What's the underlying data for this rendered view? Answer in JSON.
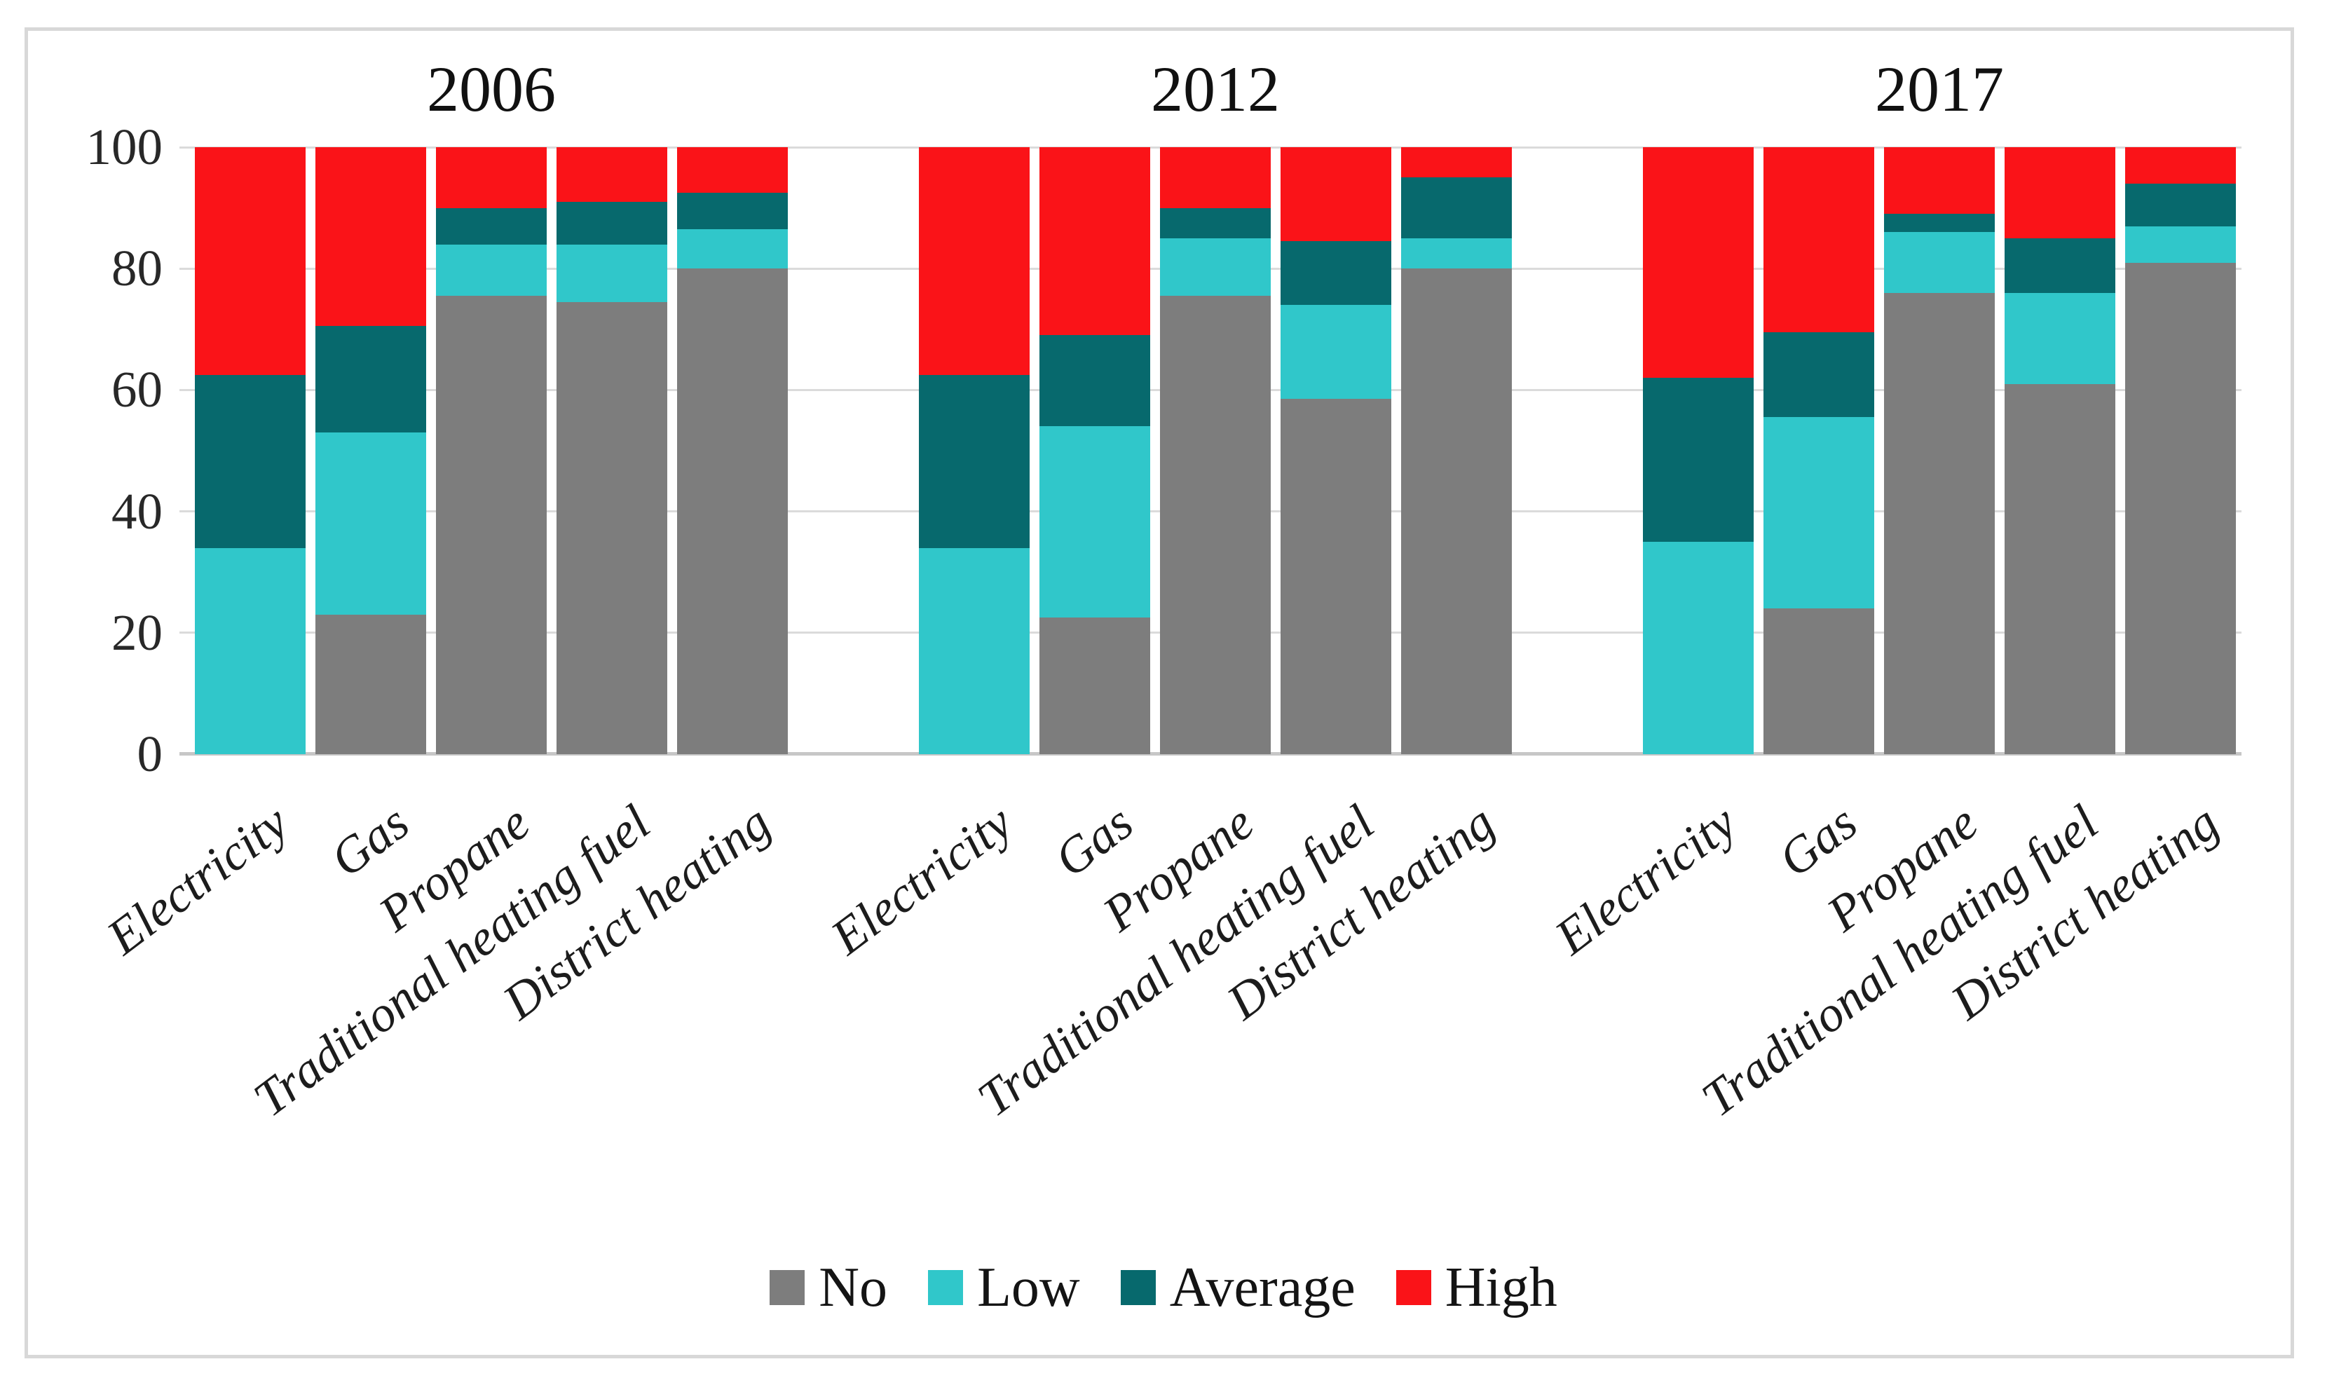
{
  "figure": {
    "background": "#FFFFFF",
    "border_color": "#D8D8D8"
  },
  "chart_data": {
    "type": "bar",
    "variant": "100%-stacked-column",
    "title": "",
    "categories": [
      "Electricity",
      "Gas",
      "Propane",
      "Traditional heating fuel",
      "District heating"
    ],
    "series_names": [
      "No",
      "Low",
      "Average",
      "High"
    ],
    "legend": [
      {
        "label": "No",
        "color": "#7D7D7D"
      },
      {
        "label": "Low",
        "color": "#30C7CA"
      },
      {
        "label": "Average",
        "color": "#07696D"
      },
      {
        "label": "High",
        "color": "#FA1318"
      }
    ],
    "legend_position": "bottom",
    "grid": true,
    "ylim": [
      0,
      100
    ],
    "yticks": [
      0,
      20,
      40,
      60,
      80,
      100
    ],
    "groups": [
      {
        "year": "2006",
        "values": {
          "No": [
            0,
            23,
            75.5,
            74.5,
            80
          ],
          "Low": [
            34,
            30,
            8.5,
            9.5,
            6.5
          ],
          "Average": [
            28.5,
            17.5,
            6,
            7,
            6
          ],
          "High": [
            37.5,
            29.5,
            10,
            9,
            7.5
          ]
        }
      },
      {
        "year": "2012",
        "values": {
          "No": [
            0,
            22.5,
            75.5,
            58.5,
            80
          ],
          "Low": [
            34,
            31.5,
            9.5,
            15.5,
            5
          ],
          "Average": [
            28.5,
            15,
            5,
            10.5,
            10
          ],
          "High": [
            37.5,
            31,
            10,
            15.5,
            5
          ]
        }
      },
      {
        "year": "2017",
        "values": {
          "No": [
            0,
            24,
            76,
            61,
            81
          ],
          "Low": [
            35,
            31.5,
            10,
            15,
            6
          ],
          "Average": [
            27,
            14,
            3,
            9,
            7
          ],
          "High": [
            38,
            30.5,
            11,
            15,
            6
          ]
        }
      }
    ]
  }
}
